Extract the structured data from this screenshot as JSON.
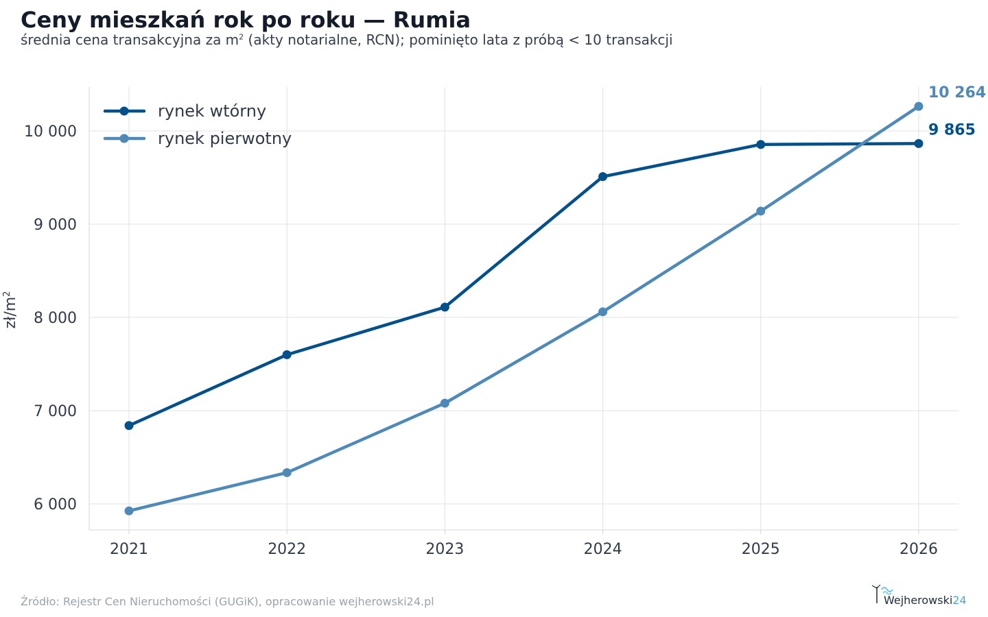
{
  "title": "Ceny mieszkań rok po roku — Rumia",
  "subtitle": "średnia cena transakcyjna za m² (akty notarialne, RCN); pominięto lata z próbą < 10 transakcji",
  "source": "Źródło: Rejestr Cen Nieruchomości (GUGiK), opracowanie wejherowski24.pl",
  "logo": {
    "text": "Wejherowski",
    "suffix": "24"
  },
  "chart_data": {
    "type": "line",
    "x": [
      2021,
      2022,
      2023,
      2024,
      2025,
      2026
    ],
    "xlabel": "",
    "ylabel": "zł/m²",
    "ylim": [
      5720,
      10480
    ],
    "yticks": [
      6000,
      7000,
      8000,
      9000,
      10000
    ],
    "ytick_labels": [
      "6 000",
      "7 000",
      "8 000",
      "9 000",
      "10 000"
    ],
    "grid": true,
    "legend": "top-left",
    "series": [
      {
        "name": "rynek wtórny",
        "color": "#03508a",
        "values": [
          6840,
          7600,
          8110,
          9510,
          9855,
          9865
        ],
        "end_label": "9 865"
      },
      {
        "name": "rynek pierwotny",
        "color": "#4e89b8",
        "values": [
          5925,
          6335,
          7080,
          8060,
          9140,
          10264
        ],
        "end_label": "10 264"
      }
    ]
  }
}
